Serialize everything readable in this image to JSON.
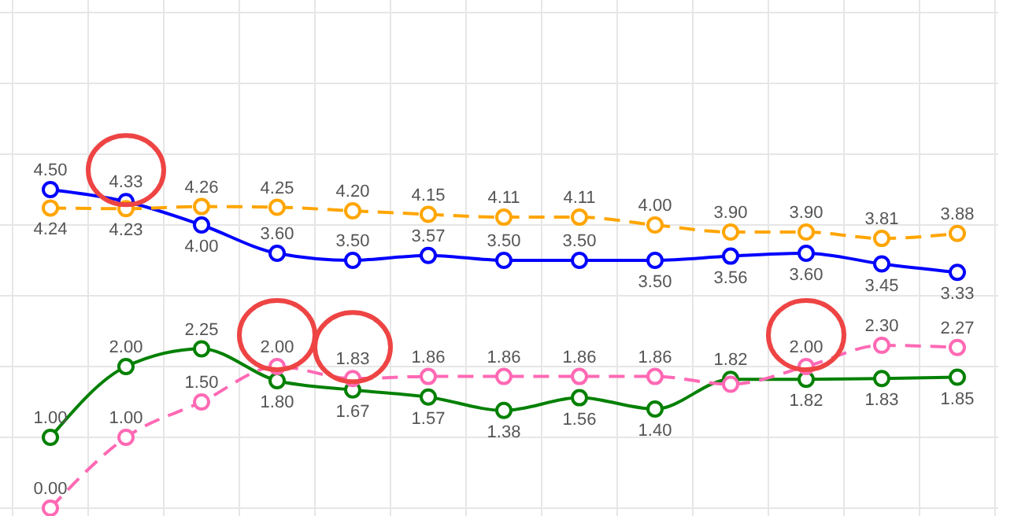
{
  "chart_data": {
    "type": "line",
    "categories": [
      null,
      null,
      null,
      null,
      null,
      null,
      null,
      null,
      null,
      null,
      null,
      null,
      null
    ],
    "ylim": [
      0,
      7
    ],
    "yticks": [
      {
        "value": 0,
        "label": null
      },
      {
        "value": 1,
        "label": null
      },
      {
        "value": 2,
        "label": null
      },
      {
        "value": 3,
        "label": null
      },
      {
        "value": 4,
        "label": null
      },
      {
        "value": 5,
        "label": null
      },
      {
        "value": 6,
        "label": null
      },
      {
        "value": 7,
        "label": null
      }
    ],
    "grid": true,
    "marker": "circle",
    "series": [
      {
        "color": "#0000ff",
        "line_style": "solid",
        "values": [
          4.5,
          4.33,
          4.0,
          3.6,
          3.5,
          3.57,
          3.5,
          3.5,
          3.5,
          3.56,
          3.6,
          3.45,
          3.33
        ],
        "value_labels": [
          "4.50",
          "4.33",
          "4.00",
          "3.60",
          "3.50",
          "3.57",
          "3.50",
          "3.50",
          "3.50",
          "3.56",
          "3.60",
          "3.45",
          "3.33"
        ]
      },
      {
        "color": "#ffa500",
        "line_style": "dashed",
        "values": [
          4.24,
          4.23,
          4.26,
          4.25,
          4.2,
          4.15,
          4.11,
          4.11,
          4.0,
          3.9,
          3.9,
          3.81,
          3.88
        ],
        "value_labels": [
          "4.24",
          "4.23",
          "4.26",
          "4.25",
          "4.20",
          "4.15",
          "4.11",
          "4.11",
          "4.00",
          "3.90",
          "3.90",
          "3.81",
          "3.88"
        ]
      },
      {
        "color": "#008000",
        "line_style": "solid",
        "values": [
          1.0,
          2.0,
          2.25,
          1.8,
          1.67,
          1.57,
          1.38,
          1.56,
          1.4,
          1.82,
          1.82,
          1.83,
          1.85
        ],
        "value_labels": [
          "1.00",
          "2.00",
          "2.25",
          "1.80",
          "1.67",
          "1.57",
          "1.38",
          "1.56",
          "1.40",
          "1.82",
          "1.82",
          "1.83",
          "1.85"
        ]
      },
      {
        "color": "#ff69b4",
        "line_style": "dashed",
        "values": [
          0.0,
          1.0,
          1.5,
          2.0,
          1.83,
          1.86,
          1.86,
          1.86,
          1.86,
          1.75,
          2.0,
          2.3,
          2.27
        ],
        "value_labels": [
          "0.00",
          "1.00",
          "1.50",
          "2.00",
          "1.83",
          "1.86",
          "1.86",
          "1.86",
          "1.86",
          null,
          "2.00",
          "2.30",
          "2.27"
        ]
      }
    ]
  }
}
